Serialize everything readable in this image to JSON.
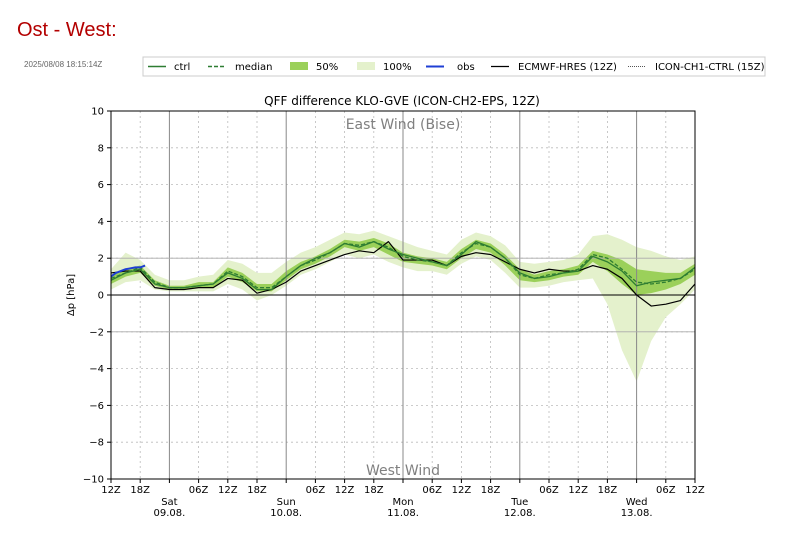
{
  "header": {
    "title": "Ost - West:",
    "timestamp": "2025/08/08 18:15:14Z"
  },
  "colors": {
    "ctrl": "#2e7d32",
    "median": "#2e7d32",
    "band50": "#9bd05a",
    "band100": "#e4f1cc",
    "obs": "#1f3fd4",
    "ecmwf": "#000000",
    "icon_ch1": "#555555"
  },
  "chart_data": {
    "type": "area",
    "title": "QFF difference KLO-GVE (ICON-CH2-EPS, 12Z)",
    "ylabel": "Δp [hPa]",
    "xlabel": "",
    "units": "hours since Fri 08.08. 12Z",
    "xlim": [
      0,
      120
    ],
    "ylim": [
      -10,
      10
    ],
    "yticks": [
      -10,
      -8,
      -6,
      -4,
      -2,
      0,
      2,
      4,
      6,
      8,
      10
    ],
    "x_ticks": [
      {
        "x": 0,
        "label": "12Z"
      },
      {
        "x": 6,
        "label": "18Z"
      },
      {
        "x": 18,
        "label": "06Z"
      },
      {
        "x": 24,
        "label": "12Z"
      },
      {
        "x": 30,
        "label": "18Z"
      },
      {
        "x": 42,
        "label": "06Z"
      },
      {
        "x": 48,
        "label": "12Z"
      },
      {
        "x": 54,
        "label": "18Z"
      },
      {
        "x": 66,
        "label": "06Z"
      },
      {
        "x": 72,
        "label": "12Z"
      },
      {
        "x": 78,
        "label": "18Z"
      },
      {
        "x": 90,
        "label": "06Z"
      },
      {
        "x": 96,
        "label": "12Z"
      },
      {
        "x": 102,
        "label": "18Z"
      },
      {
        "x": 114,
        "label": "06Z"
      },
      {
        "x": 120,
        "label": "12Z"
      }
    ],
    "day_ticks": [
      {
        "x": 12,
        "day": "Sat",
        "date": "09.08."
      },
      {
        "x": 36,
        "day": "Sun",
        "date": "10.08."
      },
      {
        "x": 60,
        "day": "Mon",
        "date": "11.08."
      },
      {
        "x": 84,
        "day": "Tue",
        "date": "12.08."
      },
      {
        "x": 108,
        "day": "Wed",
        "date": "13.08."
      }
    ],
    "grid": true,
    "annotations": [
      {
        "text": "East Wind (Bise)",
        "x": 60,
        "y": 9.3
      },
      {
        "text": "West Wind",
        "x": 60,
        "y": -9.5
      }
    ],
    "reference_lines": {
      "hlines": [
        0,
        2,
        -2
      ],
      "day_lines": [
        12,
        36,
        60,
        84,
        108
      ]
    },
    "legend_order": [
      "ctrl",
      "median",
      "p50",
      "p100",
      "obs",
      "ecmwf",
      "icon_ch1"
    ],
    "x": [
      0,
      3,
      6,
      9,
      12,
      15,
      18,
      21,
      24,
      27,
      30,
      33,
      36,
      39,
      42,
      45,
      48,
      51,
      54,
      57,
      60,
      63,
      66,
      69,
      72,
      75,
      78,
      81,
      84,
      87,
      90,
      93,
      96,
      99,
      102,
      105,
      108,
      111,
      114,
      117,
      120
    ],
    "series": {
      "ctrl": {
        "name": "ctrl",
        "values": [
          0.8,
          1.2,
          1.4,
          0.6,
          0.4,
          0.4,
          0.5,
          0.6,
          1.2,
          0.9,
          0.3,
          0.3,
          1.0,
          1.6,
          2.0,
          2.3,
          2.8,
          2.6,
          2.9,
          2.5,
          2.2,
          2.0,
          1.8,
          1.6,
          2.2,
          2.9,
          2.6,
          2.0,
          1.2,
          0.9,
          1.0,
          1.2,
          1.3,
          2.1,
          1.8,
          1.3,
          0.5,
          0.7,
          0.8,
          0.9,
          1.5
        ]
      },
      "median": {
        "name": "median",
        "values": [
          0.9,
          1.2,
          1.5,
          0.7,
          0.4,
          0.4,
          0.5,
          0.6,
          1.3,
          1.0,
          0.4,
          0.4,
          1.0,
          1.6,
          1.9,
          2.3,
          2.8,
          2.7,
          2.9,
          2.6,
          2.1,
          1.9,
          1.8,
          1.6,
          2.3,
          2.8,
          2.6,
          2.0,
          1.1,
          0.9,
          1.1,
          1.2,
          1.4,
          2.2,
          2.0,
          1.4,
          0.7,
          0.6,
          0.7,
          0.9,
          1.4
        ]
      },
      "p50_low": {
        "name": "50% low",
        "values": [
          0.6,
          1.0,
          1.2,
          0.5,
          0.3,
          0.3,
          0.4,
          0.4,
          1.0,
          0.7,
          0.2,
          0.2,
          0.8,
          1.4,
          1.7,
          2.1,
          2.6,
          2.4,
          2.6,
          2.2,
          1.8,
          1.7,
          1.6,
          1.4,
          2.0,
          2.5,
          2.3,
          1.6,
          0.8,
          0.7,
          0.8,
          1.0,
          1.1,
          1.8,
          1.3,
          0.6,
          0.0,
          0.1,
          0.3,
          0.6,
          1.1
        ]
      },
      "p50_high": {
        "name": "50% high",
        "values": [
          1.1,
          1.4,
          1.6,
          0.8,
          0.5,
          0.5,
          0.7,
          0.7,
          1.5,
          1.2,
          0.6,
          0.6,
          1.3,
          1.8,
          2.1,
          2.5,
          3.0,
          2.9,
          3.1,
          2.8,
          2.3,
          2.1,
          2.0,
          1.8,
          2.5,
          3.0,
          2.8,
          2.2,
          1.4,
          1.1,
          1.3,
          1.4,
          1.6,
          2.4,
          2.2,
          1.9,
          1.4,
          1.3,
          1.2,
          1.2,
          1.7
        ]
      },
      "p100_low": {
        "name": "100% low",
        "values": [
          0.3,
          0.7,
          0.8,
          0.3,
          0.2,
          0.2,
          0.2,
          0.2,
          0.6,
          0.3,
          -0.3,
          0.0,
          0.5,
          1.1,
          1.4,
          1.8,
          2.2,
          2.0,
          2.2,
          1.8,
          1.5,
          1.3,
          1.3,
          1.1,
          1.7,
          2.1,
          1.9,
          1.2,
          0.4,
          0.4,
          0.5,
          0.7,
          0.8,
          0.9,
          -0.5,
          -3.0,
          -4.7,
          -2.5,
          -1.2,
          -0.5,
          0.3
        ]
      },
      "p100_high": {
        "name": "100% high",
        "values": [
          1.4,
          2.3,
          1.9,
          1.1,
          0.8,
          0.8,
          1.0,
          1.1,
          1.9,
          1.7,
          1.2,
          1.2,
          1.8,
          2.3,
          2.6,
          3.0,
          3.4,
          3.3,
          3.5,
          3.2,
          2.9,
          2.6,
          2.4,
          2.2,
          3.0,
          3.4,
          3.2,
          2.7,
          1.8,
          1.7,
          1.8,
          1.9,
          2.2,
          3.2,
          3.3,
          3.0,
          2.6,
          2.4,
          2.1,
          1.9,
          2.1
        ]
      },
      "ecmwf": {
        "name": "ECMWF-HRES (12Z)",
        "values": [
          1.2,
          1.3,
          1.3,
          0.4,
          0.3,
          0.3,
          0.4,
          0.4,
          0.9,
          0.8,
          0.1,
          0.3,
          0.7,
          1.3,
          1.6,
          1.9,
          2.2,
          2.4,
          2.3,
          2.9,
          1.9,
          1.9,
          1.9,
          1.6,
          2.1,
          2.3,
          2.2,
          1.8,
          1.4,
          1.2,
          1.4,
          1.3,
          1.3,
          1.6,
          1.4,
          0.9,
          0.0,
          -0.6,
          -0.5,
          -0.3,
          0.6
        ]
      },
      "obs": {
        "name": "obs",
        "x": [
          0,
          1,
          2,
          3,
          4,
          5,
          6,
          7
        ],
        "values": [
          1.0,
          1.2,
          1.3,
          1.4,
          1.45,
          1.5,
          1.5,
          1.6
        ]
      }
    }
  },
  "legend": {
    "ctrl": "ctrl",
    "median": "median",
    "p50": "50%",
    "p100": "100%",
    "obs": "obs",
    "ecmwf": "ECMWF-HRES (12Z)",
    "icon_ch1": "ICON-CH1-CTRL (15Z)"
  }
}
